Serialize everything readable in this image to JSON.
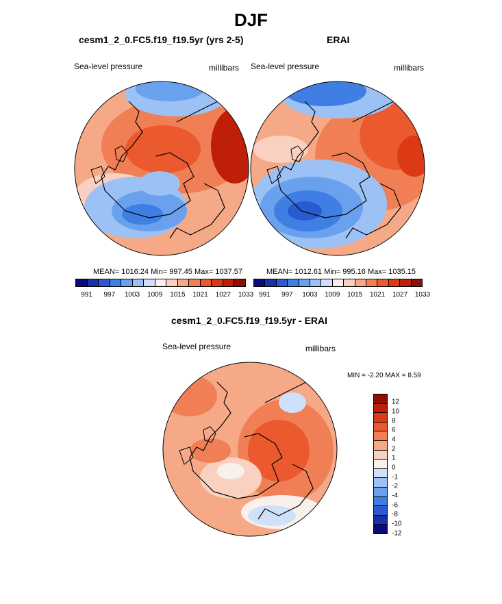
{
  "title": "DJF",
  "panels": [
    {
      "title": "cesm1_2_0.FC5.f19_f19.5yr (yrs 2-5)",
      "variable": "Sea-level pressure",
      "units": "millibars",
      "stats": "MEAN= 1016.24  Min= 997.45  Max= 1037.57"
    },
    {
      "title": "ERAI",
      "variable": "Sea-level pressure",
      "units": "millibars",
      "stats": "MEAN= 1012.61  Min= 995.16  Max= 1035.15"
    }
  ],
  "diff": {
    "title": "cesm1_2_0.FC5.f19_f19.5yr - ERAI",
    "variable": "Sea-level pressure",
    "units": "millibars",
    "stats": "MIN =  -2.20 MAX =   8.59"
  },
  "colorbar_labels": [
    "991",
    "997",
    "1003",
    "1009",
    "1015",
    "1021",
    "1027",
    "1033"
  ],
  "colorbar_colors": [
    "#0a0a78",
    "#1a2fa8",
    "#2a5ad0",
    "#3f7fe4",
    "#6aa1ee",
    "#9cc1f4",
    "#cfe1fa",
    "#f8f0ea",
    "#fad1c0",
    "#f6a987",
    "#f17f56",
    "#ea5a2e",
    "#dc3a14",
    "#bf1f08",
    "#8e1004"
  ],
  "diff_labels": [
    "12",
    "10",
    "8",
    "6",
    "4",
    "2",
    "1",
    "0",
    "-1",
    "-2",
    "-4",
    "-6",
    "-8",
    "-10",
    "-12"
  ],
  "diff_colors": [
    "#8e1004",
    "#bf1f08",
    "#dc3a14",
    "#ea5a2e",
    "#f17f56",
    "#f6a987",
    "#fad1c0",
    "#f8f0ea",
    "#cfe1fa",
    "#9cc1f4",
    "#6aa1ee",
    "#3f7fe4",
    "#2a5ad0",
    "#1a2fa8",
    "#0a0a78"
  ]
}
